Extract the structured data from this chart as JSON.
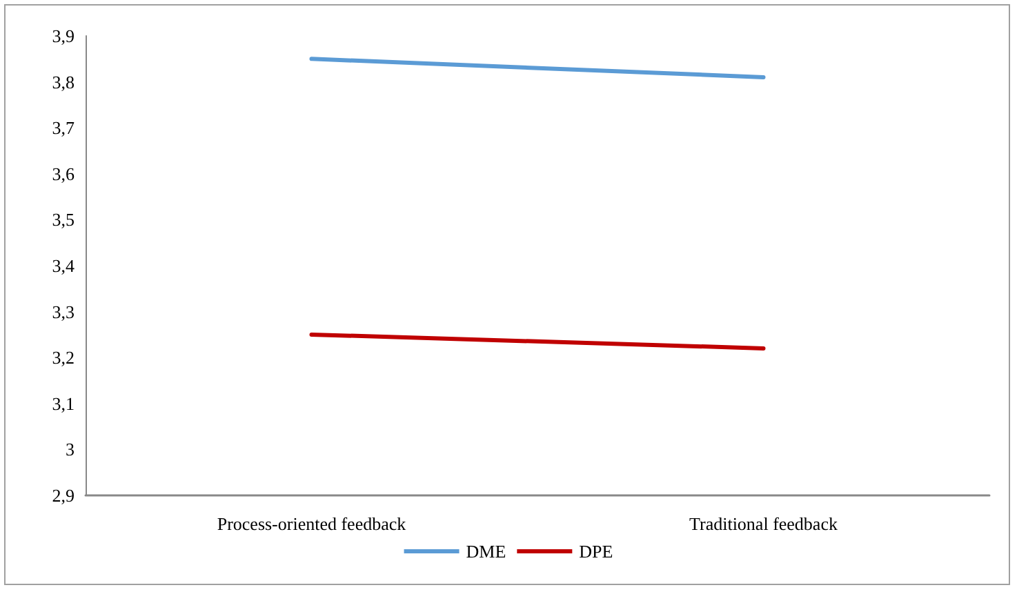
{
  "chart_data": {
    "type": "line",
    "categories": [
      "Process-oriented feedback",
      "Traditional feedback"
    ],
    "series": [
      {
        "name": "DME",
        "color": "#5b9bd5",
        "values": [
          3.85,
          3.81
        ]
      },
      {
        "name": "DPE",
        "color": "#c00000",
        "values": [
          3.25,
          3.22
        ]
      }
    ],
    "ylim": [
      2.9,
      3.9
    ],
    "yticks": [
      {
        "value": 2.9,
        "label": "2,9"
      },
      {
        "value": 3,
        "label": "3"
      },
      {
        "value": 3.1,
        "label": "3,1"
      },
      {
        "value": 3.2,
        "label": "3,2"
      },
      {
        "value": 3.3,
        "label": "3,3"
      },
      {
        "value": 3.4,
        "label": "3,4"
      },
      {
        "value": 3.5,
        "label": "3,5"
      },
      {
        "value": 3.6,
        "label": "3,6"
      },
      {
        "value": 3.7,
        "label": "3,7"
      },
      {
        "value": 3.8,
        "label": "3,8"
      },
      {
        "value": 3.9,
        "label": "3,9"
      }
    ],
    "legend": "bottom",
    "marker": "none",
    "line_style": "solid"
  }
}
